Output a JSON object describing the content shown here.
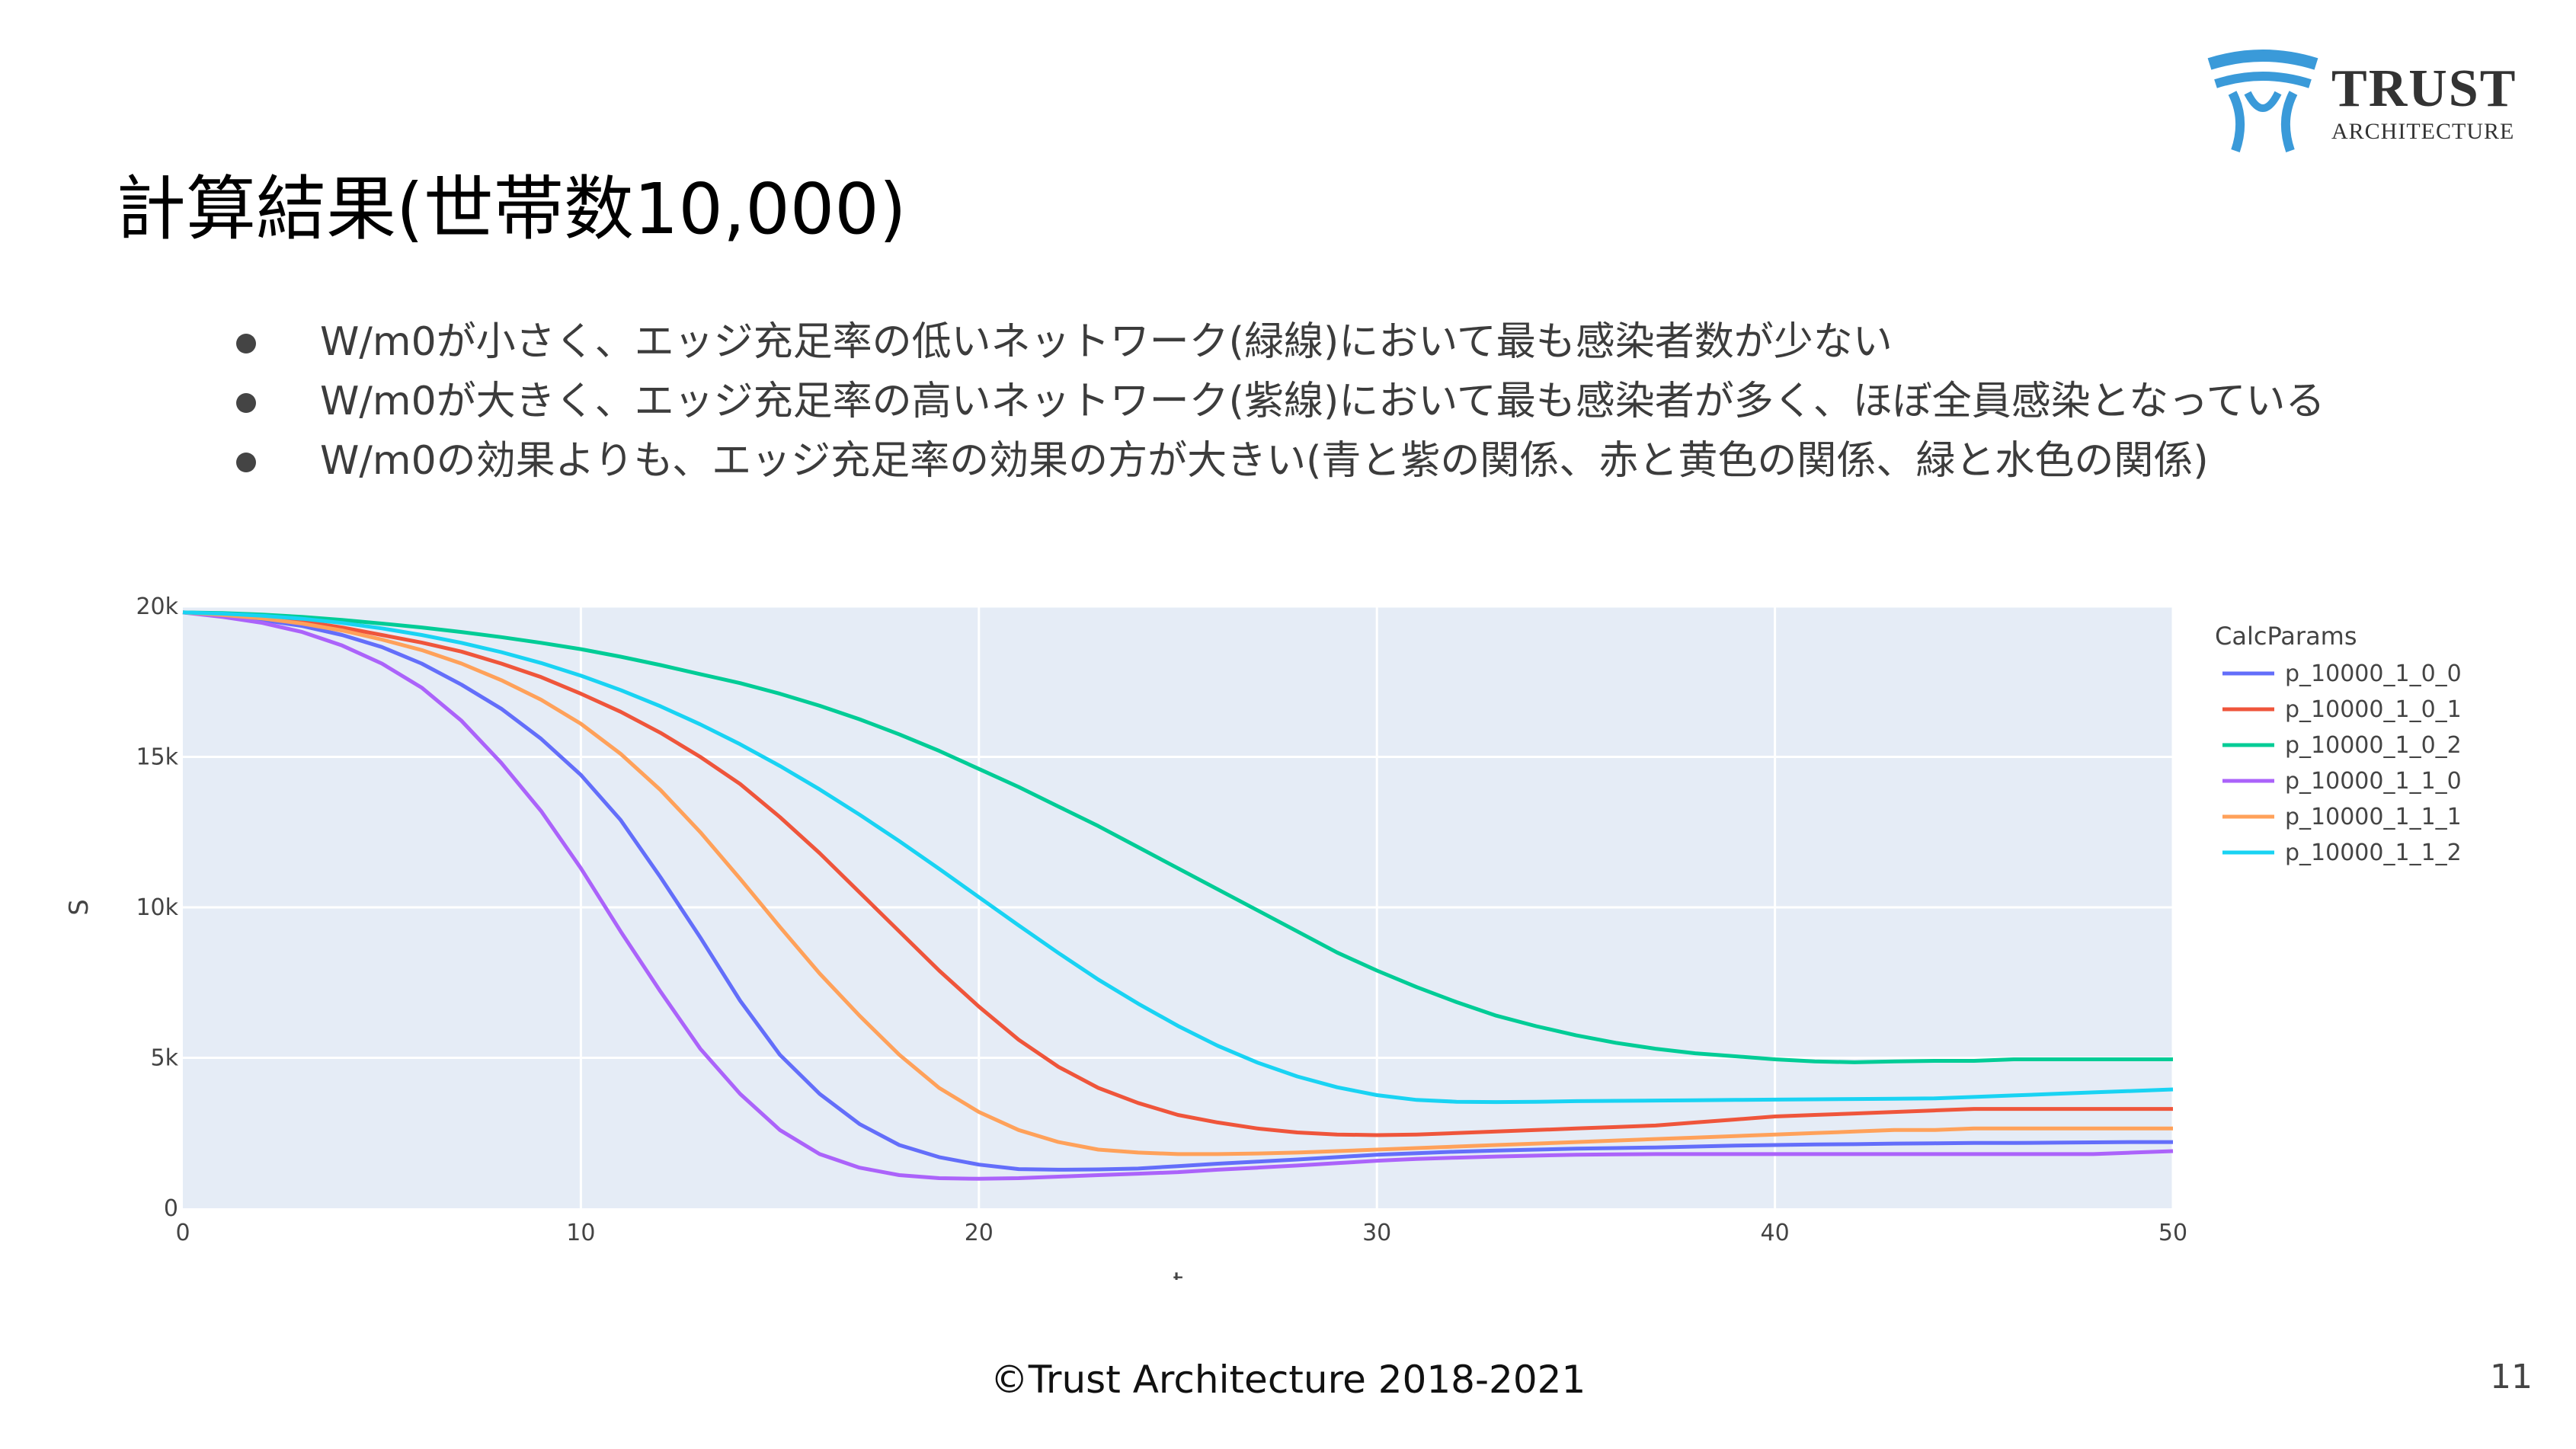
{
  "logo": {
    "name": "TRUST",
    "subname": "ARCHITECTURE",
    "brand_color": "#3a9ad9"
  },
  "slide": {
    "title": "計算結果(世帯数10,000)",
    "bullets": [
      "W/m0が小さく、エッジ充足率の低いネットワーク(緑線)において最も感染者数が少ない",
      "W/m0が大きく、エッジ充足率の高いネットワーク(紫線)において最も感染者が多く、ほぼ全員感染となっている",
      "W/m0の効果よりも、エッジ充足率の効果の方が大きい(青と紫の関係、赤と黄色の関係、緑と水色の関係)"
    ],
    "footer": "©Trust Architecture 2018-2021",
    "page_number": "11"
  },
  "chart_data": {
    "type": "line",
    "xlabel": "t",
    "ylabel": "S",
    "xlim": [
      0,
      50
    ],
    "ylim": [
      0,
      20000
    ],
    "x_ticks": [
      0,
      10,
      20,
      30,
      40,
      50
    ],
    "y_ticks": [
      0,
      5000,
      10000,
      15000,
      20000
    ],
    "y_tick_labels": [
      "0",
      "5k",
      "10k",
      "15k",
      "20k"
    ],
    "grid": true,
    "plot_background": "#e5ecf6",
    "legend_title": "CalcParams",
    "legend_position": "right",
    "x": [
      0,
      1,
      2,
      3,
      4,
      5,
      6,
      7,
      8,
      9,
      10,
      11,
      12,
      13,
      14,
      15,
      16,
      17,
      18,
      19,
      20,
      21,
      22,
      23,
      24,
      25,
      26,
      27,
      28,
      29,
      30,
      31,
      32,
      33,
      34,
      35,
      36,
      37,
      38,
      39,
      40,
      41,
      42,
      43,
      44,
      45,
      46,
      47,
      48,
      49,
      50
    ],
    "series": [
      {
        "name": "p_10000_1_0_0",
        "color": "#636efa",
        "values": [
          19800,
          19700,
          19550,
          19350,
          19050,
          18650,
          18100,
          17400,
          16600,
          15600,
          14400,
          12900,
          11000,
          9000,
          6900,
          5100,
          3800,
          2800,
          2100,
          1700,
          1450,
          1300,
          1280,
          1290,
          1320,
          1400,
          1480,
          1550,
          1620,
          1700,
          1780,
          1830,
          1880,
          1920,
          1950,
          1980,
          2000,
          2020,
          2050,
          2080,
          2100,
          2120,
          2130,
          2150,
          2160,
          2170,
          2170,
          2180,
          2190,
          2200,
          2200
        ]
      },
      {
        "name": "p_10000_1_0_1",
        "color": "#ef553b",
        "values": [
          19800,
          19750,
          19650,
          19500,
          19300,
          19050,
          18800,
          18500,
          18100,
          17650,
          17100,
          16500,
          15800,
          15000,
          14100,
          13000,
          11800,
          10500,
          9200,
          7900,
          6700,
          5600,
          4700,
          4000,
          3500,
          3100,
          2850,
          2650,
          2520,
          2450,
          2430,
          2450,
          2500,
          2550,
          2600,
          2650,
          2700,
          2750,
          2850,
          2950,
          3050,
          3100,
          3150,
          3200,
          3250,
          3300,
          3300,
          3300,
          3300,
          3300,
          3300
        ]
      },
      {
        "name": "p_10000_1_0_2",
        "color": "#00cc96",
        "values": [
          19800,
          19780,
          19730,
          19650,
          19550,
          19430,
          19300,
          19150,
          18980,
          18790,
          18580,
          18330,
          18050,
          17750,
          17450,
          17100,
          16700,
          16250,
          15750,
          15200,
          14600,
          14000,
          13350,
          12700,
          12000,
          11300,
          10600,
          9900,
          9200,
          8500,
          7900,
          7350,
          6850,
          6400,
          6050,
          5750,
          5500,
          5300,
          5150,
          5050,
          4950,
          4880,
          4850,
          4880,
          4900,
          4900,
          4950,
          4950,
          4950,
          4950,
          4950
        ]
      },
      {
        "name": "p_10000_1_1_0",
        "color": "#ab63fa",
        "values": [
          19800,
          19650,
          19450,
          19150,
          18700,
          18100,
          17300,
          16200,
          14800,
          13200,
          11300,
          9200,
          7200,
          5300,
          3800,
          2600,
          1800,
          1350,
          1100,
          1000,
          980,
          1000,
          1050,
          1100,
          1150,
          1200,
          1280,
          1350,
          1420,
          1500,
          1580,
          1640,
          1680,
          1720,
          1750,
          1780,
          1790,
          1800,
          1800,
          1800,
          1800,
          1800,
          1800,
          1800,
          1800,
          1800,
          1800,
          1800,
          1800,
          1850,
          1900
        ]
      },
      {
        "name": "p_10000_1_1_1",
        "color": "#ffa15a",
        "values": [
          19800,
          19720,
          19600,
          19430,
          19200,
          18900,
          18550,
          18100,
          17550,
          16900,
          16100,
          15100,
          13900,
          12500,
          10950,
          9350,
          7800,
          6400,
          5100,
          4000,
          3200,
          2600,
          2200,
          1950,
          1850,
          1800,
          1800,
          1820,
          1850,
          1900,
          1950,
          2000,
          2050,
          2100,
          2150,
          2200,
          2250,
          2300,
          2350,
          2400,
          2450,
          2500,
          2550,
          2600,
          2600,
          2650,
          2650,
          2650,
          2650,
          2650,
          2650
        ]
      },
      {
        "name": "p_10000_1_1_2",
        "color": "#19d3f3",
        "values": [
          19800,
          19760,
          19690,
          19590,
          19450,
          19270,
          19050,
          18790,
          18480,
          18120,
          17700,
          17220,
          16680,
          16080,
          15420,
          14700,
          13920,
          13080,
          12200,
          11280,
          10340,
          9400,
          8480,
          7600,
          6800,
          6060,
          5400,
          4840,
          4380,
          4020,
          3760,
          3600,
          3540,
          3530,
          3540,
          3560,
          3570,
          3580,
          3590,
          3600,
          3610,
          3620,
          3630,
          3640,
          3650,
          3700,
          3750,
          3800,
          3850,
          3900,
          3950
        ]
      }
    ]
  }
}
